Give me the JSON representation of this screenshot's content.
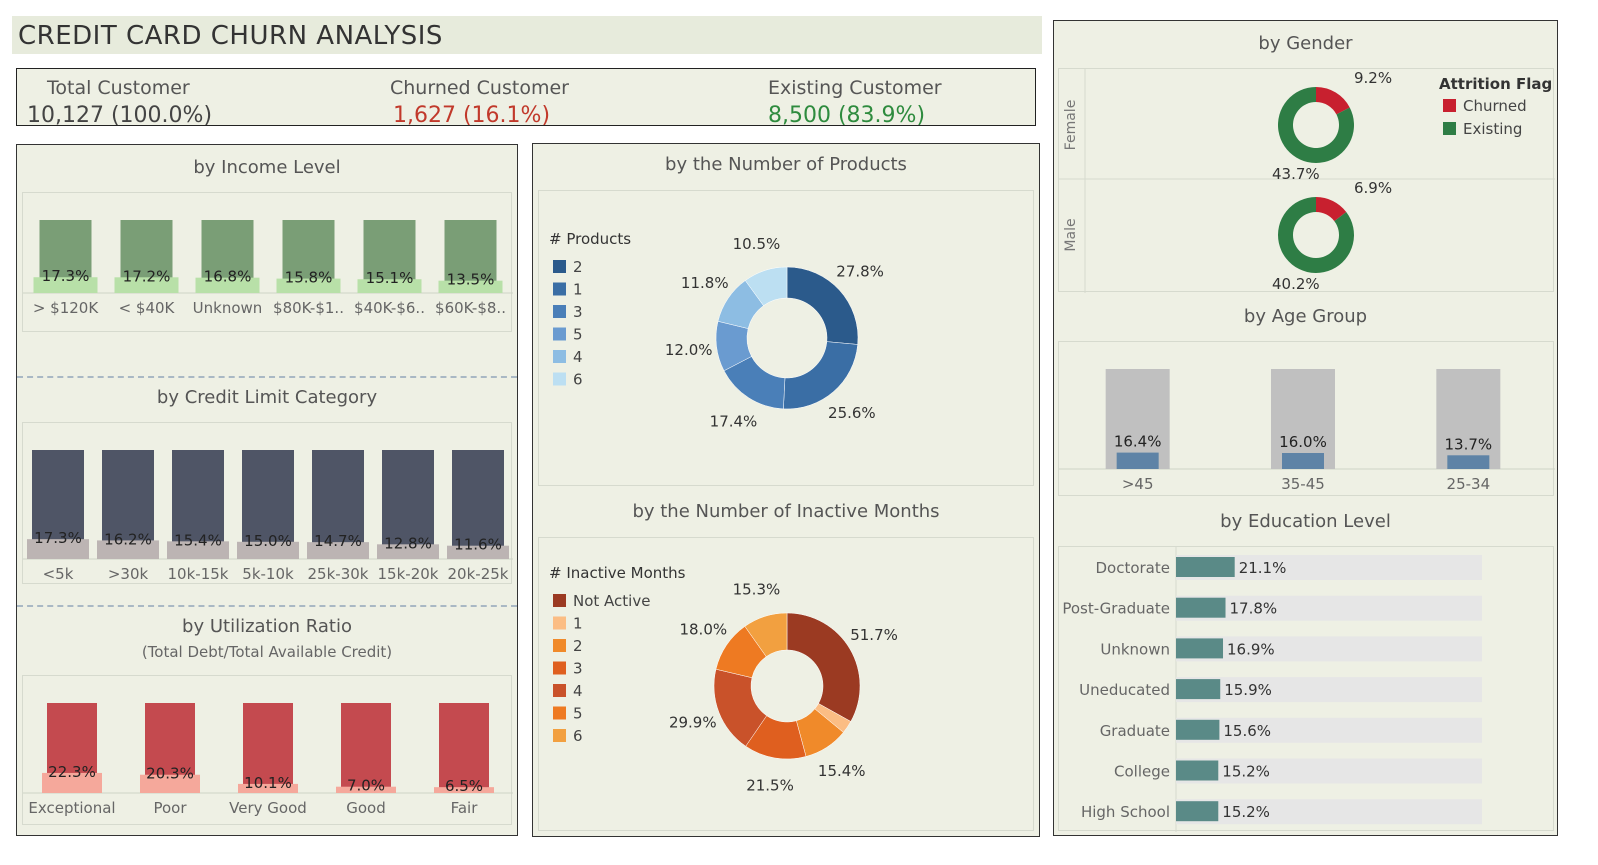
{
  "title": "CREDIT CARD CHURN ANALYSIS",
  "kpis": {
    "total": {
      "label": "Total Customer",
      "value": "10,127  (100.0%)"
    },
    "churned": {
      "label": "Churned Customer",
      "value": "1,627  (16.1%)"
    },
    "existing": {
      "label": "Existing Customer",
      "value": "8,500   (83.9%)"
    }
  },
  "colors": {
    "churned": "#c1392b",
    "existing": "#2e8b3e",
    "panel_bg": "#eef0e4"
  },
  "chart_data": [
    {
      "id": "income",
      "type": "bar",
      "title": "by Income Level",
      "categories": [
        "> $120K",
        "< $40K",
        "Unknown",
        "$80K-$1..",
        "$40K-$6..",
        "$60K-$8.."
      ],
      "values": [
        17.3,
        17.2,
        16.8,
        15.8,
        15.1,
        13.5
      ],
      "labels": [
        "17.3%",
        "17.2%",
        "16.8%",
        "15.8%",
        "15.1%",
        "13.5%"
      ],
      "colors": {
        "total": "#7a9e76",
        "churn": "#b8e0a8"
      }
    },
    {
      "id": "credit",
      "type": "bar",
      "title": "by Credit Limit Category",
      "categories": [
        "<5k",
        ">30k",
        "10k-15k",
        "5k-10k",
        "25k-30k",
        "15k-20k",
        "20k-25k"
      ],
      "values": [
        17.3,
        16.2,
        15.4,
        15.0,
        14.7,
        12.8,
        11.6
      ],
      "labels": [
        "17.3%",
        "16.2%",
        "15.4%",
        "15.0%",
        "14.7%",
        "12.8%",
        "11.6%"
      ],
      "colors": {
        "total": "#4f5566",
        "churn": "#bcb4b3"
      }
    },
    {
      "id": "util",
      "type": "bar",
      "title": "by Utilization Ratio",
      "subtitle": "(Total Debt/Total Available Credit)",
      "categories": [
        "Exceptional",
        "Poor",
        "Very Good",
        "Good",
        "Fair"
      ],
      "values": [
        22.3,
        20.3,
        10.1,
        7.0,
        6.5
      ],
      "labels": [
        "22.3%",
        "20.3%",
        "10.1%",
        "7.0%",
        "6.5%"
      ],
      "colors": {
        "total": "#c44a4f",
        "churn": "#f5a89b"
      }
    },
    {
      "id": "products",
      "type": "pie",
      "title": "by the Number of Products",
      "legend_title": "#  Products",
      "legend": [
        {
          "name": "2",
          "color": "#2b5a8b"
        },
        {
          "name": "1",
          "color": "#3a6ea5"
        },
        {
          "name": "3",
          "color": "#4a7fb8"
        },
        {
          "name": "5",
          "color": "#6a9bd0"
        },
        {
          "name": "4",
          "color": "#8dbde3"
        },
        {
          "name": "6",
          "color": "#bcdff2"
        }
      ],
      "slices": [
        {
          "name": "2",
          "value": 27.8,
          "label": "27.8%",
          "color": "#2b5a8b"
        },
        {
          "name": "1",
          "value": 25.6,
          "label": "25.6%",
          "color": "#3a6ea5"
        },
        {
          "name": "3",
          "value": 17.4,
          "label": "17.4%",
          "color": "#4a7fb8"
        },
        {
          "name": "5",
          "value": 12.0,
          "label": "12.0%",
          "color": "#6a9bd0"
        },
        {
          "name": "4",
          "value": 11.8,
          "label": "11.8%",
          "color": "#8dbde3"
        },
        {
          "name": "6",
          "value": 10.5,
          "label": "10.5%",
          "color": "#bcdff2"
        }
      ]
    },
    {
      "id": "inactive",
      "type": "pie",
      "title": "by the Number of  Inactive Months",
      "legend_title": "# Inactive Months",
      "legend": [
        {
          "name": "Not Active",
          "color": "#9b3a22"
        },
        {
          "name": "1",
          "color": "#fbbd84"
        },
        {
          "name": "2",
          "color": "#f08a2a"
        },
        {
          "name": "3",
          "color": "#df5f1f"
        },
        {
          "name": "4",
          "color": "#c9522a"
        },
        {
          "name": "5",
          "color": "#ee7a22"
        },
        {
          "name": "6",
          "color": "#f2a040"
        }
      ],
      "slices": [
        {
          "name": "Not Active",
          "value": 51.7,
          "label": "51.7%",
          "color": "#9b3a22"
        },
        {
          "name": "1",
          "value": 4.5,
          "label": "",
          "color": "#fbbd84"
        },
        {
          "name": "2",
          "value": 15.4,
          "label": "15.4%",
          "color": "#f08a2a"
        },
        {
          "name": "3",
          "value": 21.5,
          "label": "21.5%",
          "color": "#df5f1f"
        },
        {
          "name": "4",
          "value": 29.9,
          "label": "29.9%",
          "color": "#c9522a"
        },
        {
          "name": "5",
          "value": 18.0,
          "label": "18.0%",
          "color": "#ee7a22"
        },
        {
          "name": "6",
          "value": 15.3,
          "label": "15.3%",
          "color": "#f2a040"
        }
      ]
    },
    {
      "id": "gender",
      "type": "pie",
      "title": "by Gender",
      "legend_title": "Attrition Flag",
      "legend": [
        {
          "name": "Churned",
          "color": "#c8202f"
        },
        {
          "name": "Existing",
          "color": "#2e7d45"
        }
      ],
      "groups": [
        {
          "name": "Female",
          "churned": 9.2,
          "existing": 43.7,
          "churned_label": "9.2%",
          "existing_label": "43.7%"
        },
        {
          "name": "Male",
          "churned": 6.9,
          "existing": 40.2,
          "churned_label": "6.9%",
          "existing_label": "40.2%"
        }
      ]
    },
    {
      "id": "age",
      "type": "bar",
      "title": "by Age Group",
      "categories": [
        ">45",
        "35-45",
        "25-34"
      ],
      "values": [
        16.4,
        16.0,
        13.7
      ],
      "labels": [
        "16.4%",
        "16.0%",
        "13.7%"
      ],
      "colors": {
        "total": "#c0c0c0",
        "churn": "#5e83a6"
      }
    },
    {
      "id": "education",
      "type": "bar",
      "orientation": "horizontal",
      "title": "by Education Level",
      "categories": [
        "Doctorate",
        "Post-Graduate",
        "Unknown",
        "Uneducated",
        "Graduate",
        "College",
        "High School"
      ],
      "values": [
        21.1,
        17.8,
        16.9,
        15.9,
        15.6,
        15.2,
        15.2
      ],
      "labels": [
        "21.1%",
        "17.8%",
        "16.9%",
        "15.9%",
        "15.6%",
        "15.2%",
        "15.2%"
      ],
      "colors": {
        "bar": "#5a8a87",
        "track": "#e6e6e6"
      }
    }
  ]
}
